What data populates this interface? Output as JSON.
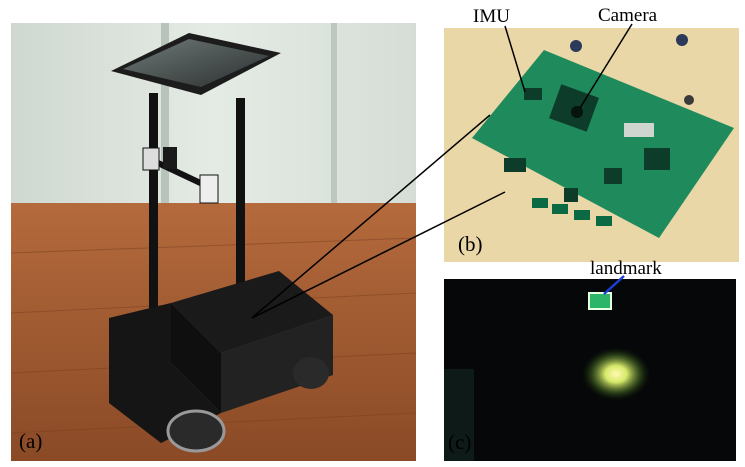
{
  "figure": {
    "panels": [
      {
        "id": "a",
        "label": "(a)",
        "content": "mobile robot platform with mounted tablet and cameras"
      },
      {
        "id": "b",
        "label": "(b)",
        "content": "circuit board with IMU and camera"
      },
      {
        "id": "c",
        "label": "(c)",
        "content": "camera view with detected landmark"
      }
    ],
    "annotations": {
      "imu": "IMU",
      "camera": "Camera",
      "landmark": "landmark"
    },
    "colors": {
      "board": "#1f8a5c",
      "landmark_box": "#e8ffe0",
      "landmark_arrow": "#1a3fd6",
      "leader_lines": "#000000"
    }
  }
}
